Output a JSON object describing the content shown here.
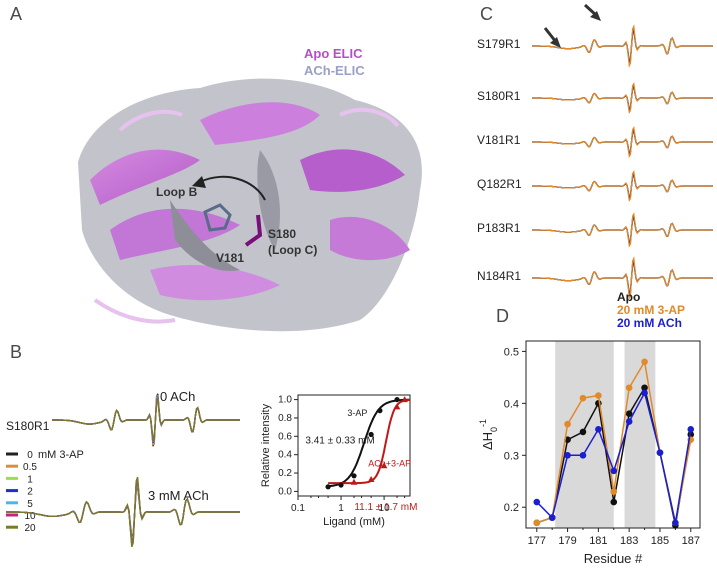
{
  "panels": {
    "A": {
      "label": "A",
      "legend": [
        "Apo ELIC",
        "ACh-ELIC"
      ],
      "annotations": [
        "Loop B",
        "S180",
        "(Loop C)",
        "V181"
      ]
    },
    "B": {
      "label": "B",
      "spectrum_label": "S180R1",
      "top_label": "0 ACh",
      "bottom_label": "3 mM ACh",
      "legend_title": "mM 3-AP",
      "legend_items": [
        "0",
        "0.5",
        "1",
        "2",
        "5",
        "10",
        "20"
      ],
      "legend_colors": [
        "#222222",
        "#d8903f",
        "#9be04a",
        "#1a2fd0",
        "#4ab9e8",
        "#c2267a",
        "#7a7a2a"
      ]
    },
    "C": {
      "label": "C",
      "mutants": [
        "S179R1",
        "S180R1",
        "V181R1",
        "Q182R1",
        "P183R1",
        "N184R1"
      ],
      "legend": [
        "Apo",
        "20 mM 3-AP",
        "20 mM ACh"
      ],
      "legend_colors": [
        "#222222",
        "#e08a2a",
        "#1a1fd0"
      ]
    },
    "D": {
      "label": "D"
    }
  },
  "chart_data": [
    {
      "type": "scatter",
      "panel": "B-inset",
      "xlabel": "Ligand (mM)",
      "ylabel": "Relative intensity",
      "xscale": "log",
      "xlim": [
        0.1,
        40
      ],
      "ylim": [
        -0.05,
        1.05
      ],
      "xticks": [
        "0.1",
        "1",
        "10"
      ],
      "yticks": [
        "0.0",
        "0.2",
        "0.4",
        "0.6",
        "0.8",
        "1.0"
      ],
      "series": [
        {
          "name": "3-AP",
          "color": "#111111",
          "x": [
            0.5,
            1,
            2,
            5,
            8,
            20
          ],
          "y": [
            0.05,
            0.07,
            0.17,
            0.62,
            0.88,
            1.0
          ]
        },
        {
          "name": "ACh+3-AP",
          "color": "#c01818",
          "x": [
            2,
            5,
            10,
            20,
            30
          ],
          "y": [
            0.1,
            0.13,
            0.28,
            0.92,
            1.0
          ]
        }
      ],
      "annotations": [
        "3.41 ± 0.33 mM",
        "11.1 ± 1.7 mM"
      ],
      "ec50": [
        3.41,
        11.1
      ]
    },
    {
      "type": "line",
      "panel": "D",
      "xlabel": "Residue #",
      "ylabel": "ΔH0-1",
      "xlim": [
        176.3,
        187.6
      ],
      "ylim": [
        0.16,
        0.52
      ],
      "xticks": [
        "177",
        "179",
        "181",
        "183",
        "185",
        "187"
      ],
      "yticks": [
        "0.2",
        "0.3",
        "0.4",
        "0.5"
      ],
      "shaded_ranges": [
        [
          178.2,
          182.0
        ],
        [
          182.7,
          184.7
        ]
      ],
      "series": [
        {
          "name": "Apo",
          "color": "#111111",
          "x": [
            177,
            178,
            179,
            180,
            181,
            182,
            183,
            184,
            185,
            186,
            187
          ],
          "y": [
            0.17,
            0.18,
            0.33,
            0.345,
            0.4,
            0.21,
            0.38,
            0.43,
            0.305,
            0.165,
            0.34
          ]
        },
        {
          "name": "20 mM 3-AP",
          "color": "#e08a2a",
          "x": [
            177,
            178,
            179,
            180,
            181,
            182,
            183,
            184,
            185,
            186,
            187
          ],
          "y": [
            0.17,
            0.18,
            0.36,
            0.41,
            0.415,
            0.23,
            0.43,
            0.48,
            0.305,
            0.17,
            0.33
          ]
        },
        {
          "name": "20 mM ACh",
          "color": "#1a1fd0",
          "x": [
            177,
            178,
            179,
            180,
            181,
            182,
            183,
            184,
            185,
            186,
            187
          ],
          "y": [
            0.21,
            0.18,
            0.3,
            0.3,
            0.35,
            0.27,
            0.365,
            0.42,
            0.305,
            0.17,
            0.35
          ]
        }
      ]
    }
  ]
}
